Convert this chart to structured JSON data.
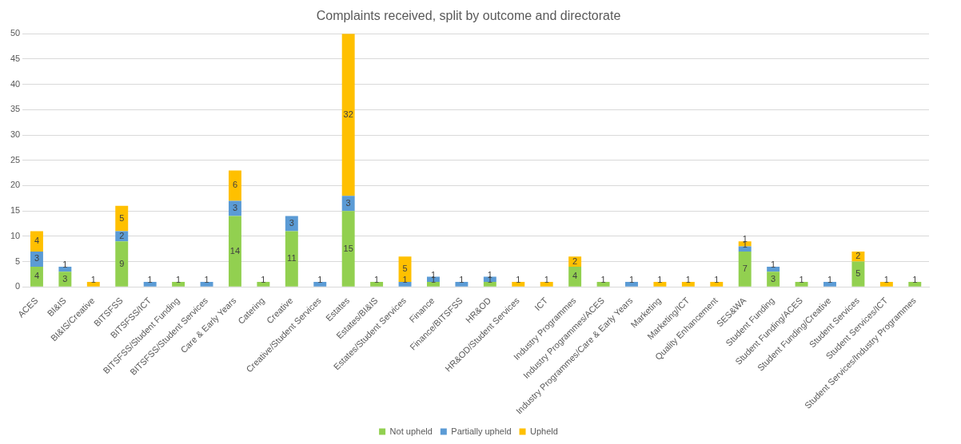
{
  "chart_data": {
    "type": "bar",
    "title": "Complaints received, split by outcome and directorate",
    "stacked": true,
    "data_labels": true,
    "grid": "y",
    "legend": "bottom",
    "ylim": [
      0,
      50
    ],
    "yticks": [
      0,
      5,
      10,
      15,
      20,
      25,
      30,
      35,
      40,
      45,
      50
    ],
    "categories": [
      "ACES",
      "BI&IS",
      "BI&IS/Creative",
      "BITSFSS",
      "BITSFSS/ICT",
      "BITSFSS/Student Funding",
      "BITSFSS/Student Services",
      "Care & Early Years",
      "Catering",
      "Creative",
      "Creative/Student Services",
      "Estates",
      "Estates/BI&IS",
      "Estates/Student Services",
      "Finance",
      "Finance/BITSFSS",
      "HR&OD",
      "HR&OD/Student Services",
      "ICT",
      "Industry Programmes",
      "Industry Programmes/ACES",
      "Industry Programmes/Care & Early Years",
      "Marketing",
      "Marketing/ICT",
      "Quality Enhancement",
      "SES&WA",
      "Student Funding",
      "Student Funding/ACES",
      "Student Funding/Creative",
      "Student Services",
      "Student Services/ICT",
      "Student Services/Industry Programmes"
    ],
    "series": [
      {
        "name": "Not upheld",
        "color": "#92d050",
        "values": [
          4,
          3,
          null,
          9,
          null,
          1,
          null,
          14,
          1,
          11,
          null,
          15,
          1,
          null,
          1,
          null,
          1,
          null,
          null,
          4,
          1,
          null,
          null,
          null,
          null,
          7,
          3,
          1,
          null,
          5,
          null,
          1
        ]
      },
      {
        "name": "Partially upheld",
        "color": "#5b9bd5",
        "values": [
          3,
          1,
          null,
          2,
          1,
          null,
          1,
          3,
          null,
          3,
          1,
          3,
          null,
          1,
          1,
          1,
          1,
          null,
          null,
          null,
          null,
          1,
          null,
          null,
          null,
          1,
          1,
          null,
          1,
          null,
          null,
          null
        ]
      },
      {
        "name": "Upheld",
        "color": "#ffc000",
        "values": [
          4,
          null,
          1,
          5,
          null,
          null,
          null,
          6,
          null,
          null,
          null,
          32,
          null,
          5,
          null,
          null,
          null,
          1,
          1,
          2,
          null,
          null,
          1,
          1,
          1,
          1,
          null,
          null,
          null,
          2,
          1,
          null
        ]
      }
    ]
  }
}
